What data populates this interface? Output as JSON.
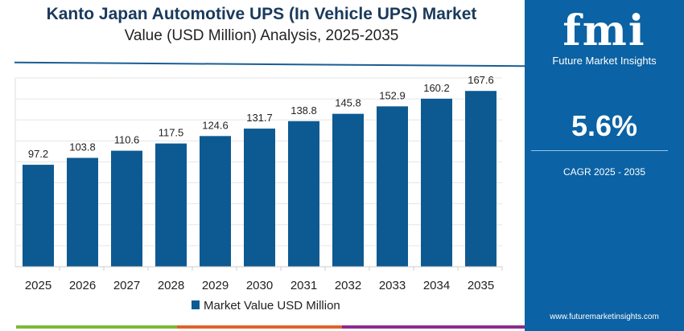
{
  "header": {
    "title": "Kanto Japan Automotive UPS (In Vehicle UPS) Market",
    "subtitle": "Value (USD Million) Analysis, 2025-2035"
  },
  "panel": {
    "logo_text": "fmi",
    "logo_subtitle": "Future Market Insights",
    "cagr_value": "5.6%",
    "cagr_label": "CAGR 2025 - 2035",
    "url": "www.futuremarketinsights.com",
    "background": "#0b62a4"
  },
  "chart_data": {
    "type": "bar",
    "categories": [
      "2025",
      "2026",
      "2027",
      "2028",
      "2029",
      "2030",
      "2031",
      "2032",
      "2033",
      "2034",
      "2035"
    ],
    "series": [
      {
        "name": "Market Value USD Million",
        "values": [
          97.2,
          103.8,
          110.6,
          117.5,
          124.6,
          131.7,
          138.8,
          145.8,
          152.9,
          160.2,
          167.6
        ],
        "color": "#0d5a92"
      }
    ],
    "data_labels": [
      "97.2",
      "103.8",
      "110.6",
      "117.5",
      "124.6",
      "131.7",
      "138.8",
      "145.8",
      "152.9",
      "160.2",
      "167.6"
    ],
    "ylim": [
      0,
      180
    ],
    "grid": true,
    "legend": "bottom"
  }
}
